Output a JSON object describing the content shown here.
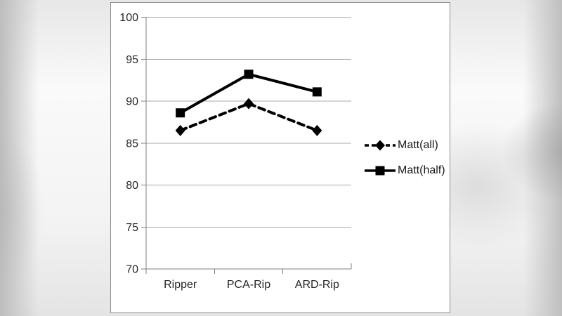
{
  "chart_data": {
    "type": "line",
    "categories": [
      "Ripper",
      "PCA-Rip",
      "ARD-Rip"
    ],
    "series": [
      {
        "name": "Matt(all)",
        "values": [
          86.5,
          89.7,
          86.5
        ],
        "line_style": "dashed",
        "marker": "diamond"
      },
      {
        "name": "Matt(half)",
        "values": [
          88.6,
          93.2,
          91.1
        ],
        "line_style": "solid",
        "marker": "square"
      }
    ],
    "title": "",
    "xlabel": "",
    "ylabel": "",
    "ylim": [
      70,
      100
    ],
    "yticks": [
      70,
      75,
      80,
      85,
      90,
      95,
      100
    ],
    "grid": true,
    "legend_position": "right"
  },
  "colors": {
    "series_color": "#000000",
    "grid_color": "#a8a8a8",
    "axis_color": "#7f7f7f",
    "tick_text_color": "#262626",
    "panel_background": "#ffffff",
    "panel_border": "#8c8c8c"
  },
  "legend": {
    "items": [
      {
        "label": "Matt(all)"
      },
      {
        "label": "Matt(half)"
      }
    ]
  }
}
